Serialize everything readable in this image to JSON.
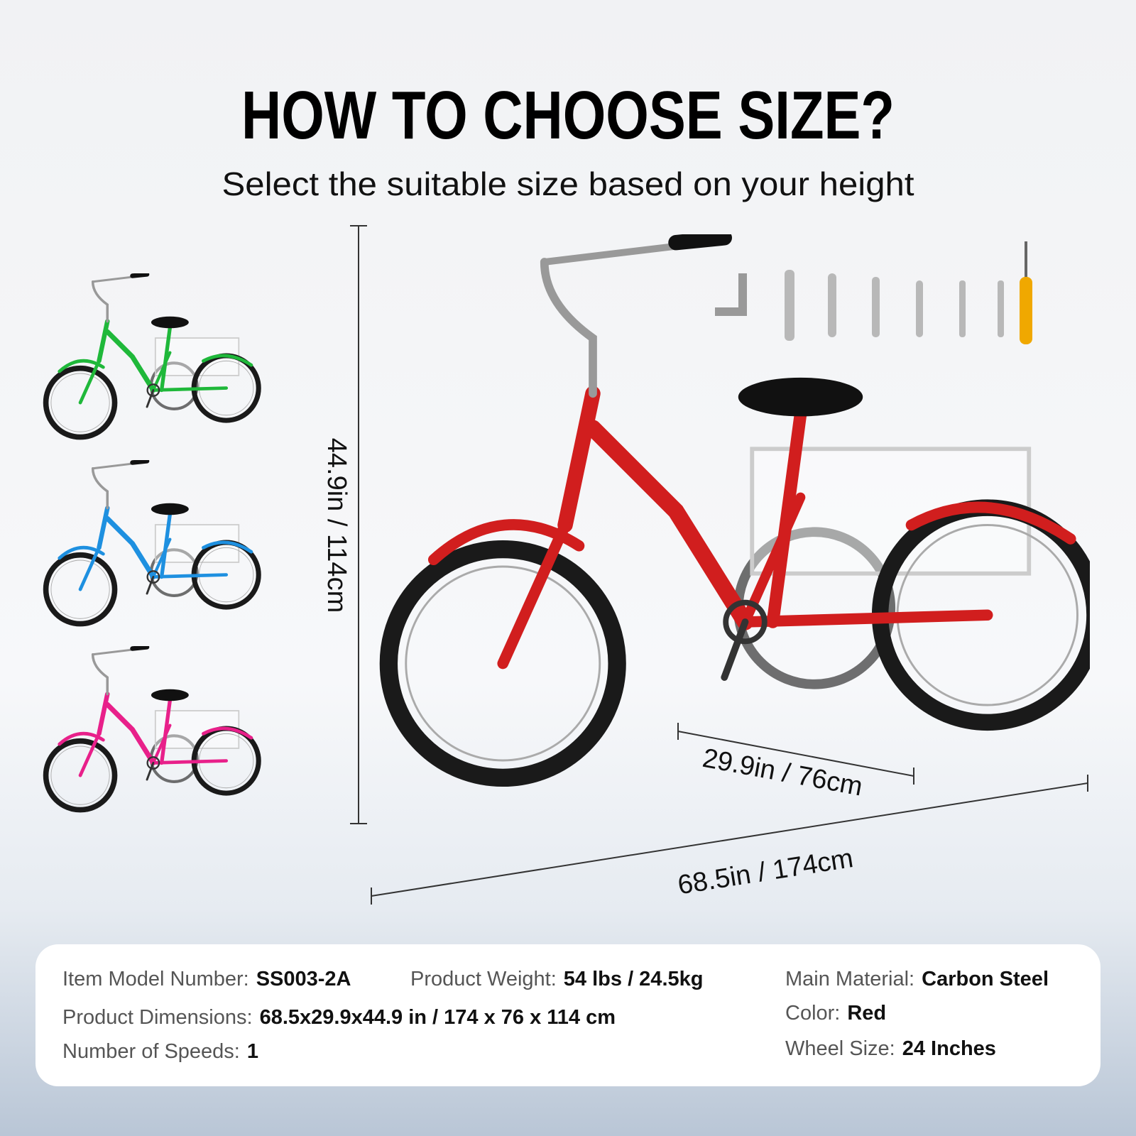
{
  "header": {
    "title": "HOW TO CHOOSE SIZE?",
    "subtitle": "Select the suitable size based on your height"
  },
  "dimensions": {
    "height": "44.9in / 114cm",
    "width": "29.9in / 76cm",
    "length": "68.5in / 174cm"
  },
  "specs": [
    {
      "label": "Item Model Number:",
      "value": "SS003-2A"
    },
    {
      "label": "Product Weight:",
      "value": "54 lbs / 24.5kg"
    },
    {
      "label": "Main Material:",
      "value": "Carbon Steel"
    },
    {
      "label": "Product Dimensions:",
      "value": "68.5x29.9x44.9 in / 174 x 76 x 114 cm"
    },
    {
      "label": "Color:",
      "value": "Red"
    },
    {
      "label": "Number of Speeds:",
      "value": "1"
    },
    {
      "label": "Wheel Size:",
      "value": "24 Inches"
    }
  ]
}
